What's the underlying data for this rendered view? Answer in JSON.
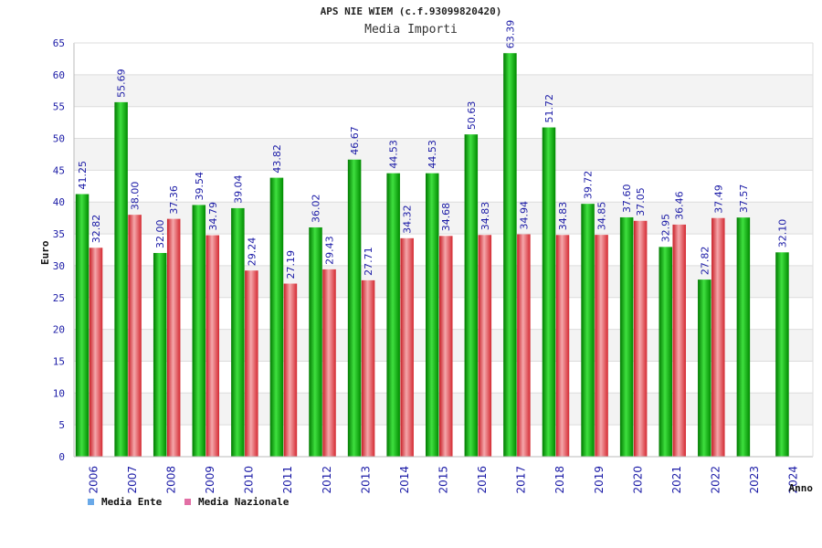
{
  "chart_data": {
    "type": "bar",
    "title": "APS NIE WIEM (c.f.93099820420)",
    "subtitle": "Media Importi",
    "xlabel": "Anno",
    "ylabel": "Euro",
    "ylim": [
      0,
      65
    ],
    "yticks": [
      0,
      5,
      10,
      15,
      20,
      25,
      30,
      35,
      40,
      45,
      50,
      55,
      60,
      65
    ],
    "categories": [
      "2006",
      "2007",
      "2008",
      "2009",
      "2010",
      "2011",
      "2012",
      "2013",
      "2014",
      "2015",
      "2016",
      "2017",
      "2018",
      "2019",
      "2020",
      "2021",
      "2022",
      "2023",
      "2024"
    ],
    "series": [
      {
        "name": "Media Ente",
        "color": "#0fb50f",
        "legend_color": "#6aa9e8",
        "values": [
          41.25,
          55.69,
          32.0,
          39.54,
          39.04,
          43.82,
          36.02,
          46.67,
          44.53,
          44.53,
          50.63,
          63.39,
          51.72,
          39.72,
          37.6,
          32.95,
          27.82,
          37.57,
          32.1
        ],
        "labels": [
          "41.25",
          "55.69",
          "32.00",
          "39.54",
          "39.04",
          "43.82",
          "36.02",
          "46.67",
          "44.53",
          "44.53",
          "50.63",
          "63.39",
          "51.72",
          "39.72",
          "37.60",
          "32.95",
          "27.82",
          "37.57",
          "32.10"
        ]
      },
      {
        "name": "Media Nazionale",
        "color": "#e8383f",
        "legend_color": "#e26fa5",
        "values": [
          32.82,
          38.0,
          37.36,
          34.79,
          29.24,
          27.19,
          29.43,
          27.71,
          34.32,
          34.68,
          34.83,
          34.94,
          34.83,
          34.85,
          37.05,
          36.46,
          37.49,
          null,
          null
        ],
        "labels": [
          "32.82",
          "38.00",
          "37.36",
          "34.79",
          "29.24",
          "27.19",
          "29.43",
          "27.71",
          "34.32",
          "34.68",
          "34.83",
          "34.94",
          "34.83",
          "34.85",
          "37.05",
          "36.46",
          "37.49",
          "",
          ""
        ]
      }
    ],
    "grid": true,
    "legend_position": "bottom-left",
    "colors": {
      "tick_text": "#1a1aa6",
      "value_label": "#1a1aa6",
      "axis_label": "#111111"
    }
  }
}
